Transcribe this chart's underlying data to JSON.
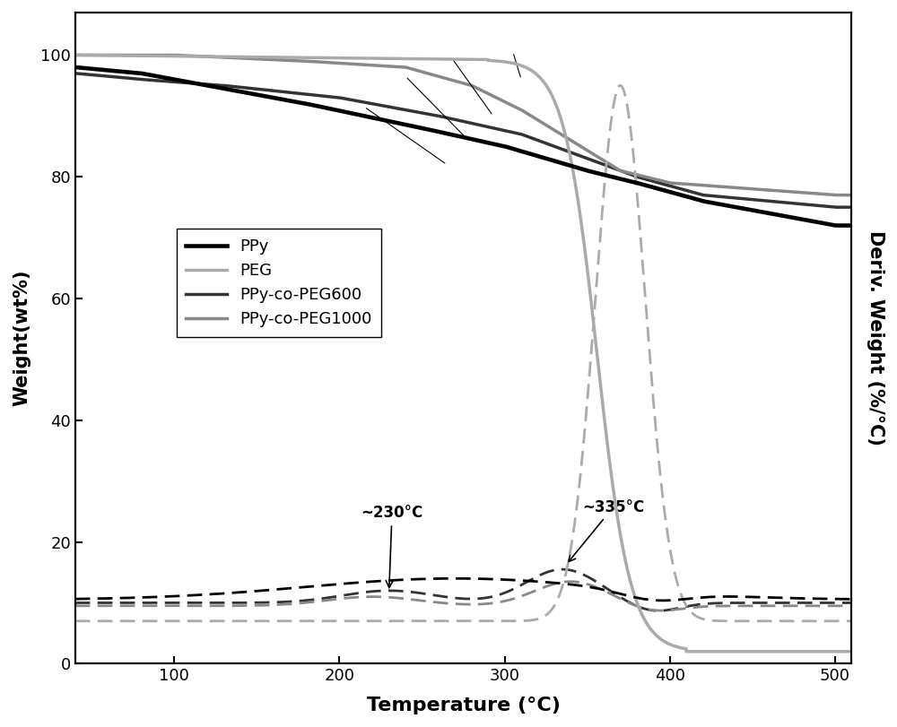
{
  "xlabel": "Temperature (°C)",
  "ylabel_left": "Weight(wt%)",
  "ylabel_right": "Deriv. Weight (%/°C)",
  "xlim": [
    40,
    510
  ],
  "ylim_left": [
    0,
    107
  ],
  "ylim_right": [
    0,
    107
  ],
  "xticks": [
    100,
    200,
    300,
    400,
    500
  ],
  "yticks": [
    0,
    20,
    40,
    60,
    80,
    100
  ],
  "colors": {
    "PPy": "#000000",
    "PEG": "#aaaaaa",
    "PPy_co_PEG600": "#333333",
    "PPy_co_PEG1000": "#888888"
  },
  "annotation_230": "~230°C",
  "annotation_335": "~335°C",
  "connector_lines": [
    [
      215,
      91.5,
      265,
      82
    ],
    [
      240,
      96.5,
      278,
      86
    ],
    [
      268,
      99.5,
      293,
      90
    ],
    [
      305,
      100.5,
      310,
      96
    ]
  ]
}
